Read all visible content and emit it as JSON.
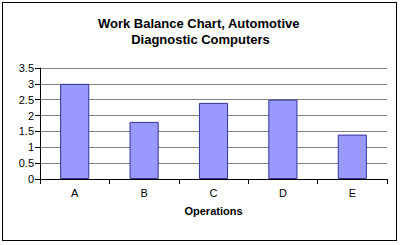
{
  "chart_data": {
    "type": "bar",
    "title": "Work Balance Chart, Automotive Diagnostic Computers",
    "x_label": "Operations",
    "categories": [
      "A",
      "B",
      "C",
      "D",
      "E"
    ],
    "values": [
      3,
      1.8,
      2.4,
      2.5,
      1.4
    ],
    "color": "#9999ff",
    "ylim": [
      0,
      3.5
    ],
    "yticks": [
      0,
      0.5,
      1,
      1.5,
      2,
      2.5,
      3,
      3.5
    ],
    "grid": true
  }
}
